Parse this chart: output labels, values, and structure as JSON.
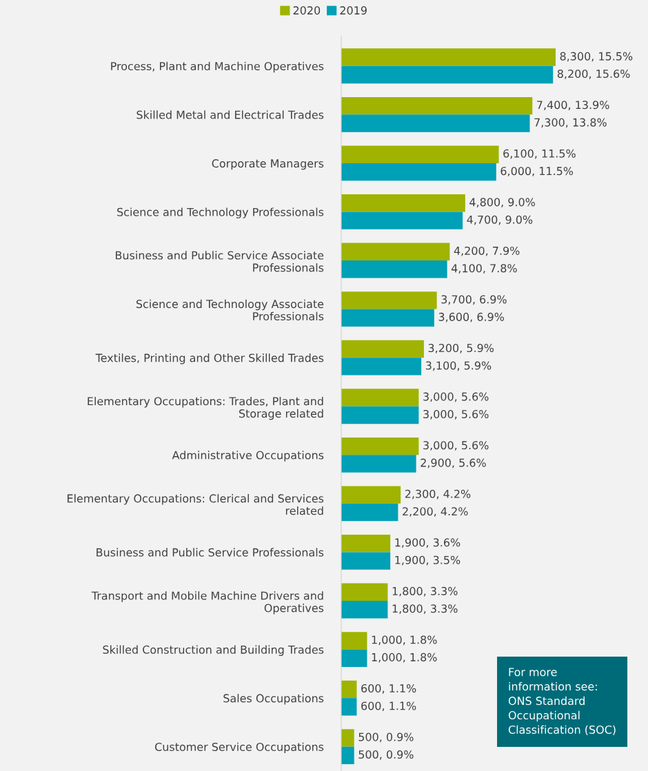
{
  "chart_data": {
    "type": "bar",
    "orientation": "horizontal",
    "legend": "top",
    "data_labels": false,
    "categories": [
      "Process, Plant and Machine Operatives",
      "Skilled Metal and Electrical Trades",
      "Corporate Managers",
      "Science and Technology Professionals",
      "Business and Public Service Associate\nProfessionals",
      "Science and Technology Associate\nProfessionals",
      "Textiles, Printing and Other Skilled Trades",
      "Elementary Occupations: Trades, Plant and\nStorage related",
      "Administrative Occupations",
      "Elementary Occupations: Clerical and Services\nrelated",
      "Business and Public Service Professionals",
      "Transport and Mobile Machine Drivers and\nOperatives",
      "Skilled Construction and Building Trades",
      "Sales Occupations",
      "Customer Service Occupations"
    ],
    "series": [
      {
        "name": "2020",
        "color": "#9fb300",
        "values": [
          8300,
          7400,
          6100,
          4800,
          4200,
          3700,
          3200,
          3000,
          3000,
          2300,
          1900,
          1800,
          1000,
          600,
          500
        ],
        "value_labels": [
          "8,300, 15.5%",
          "7,400, 13.9%",
          "6,100, 11.5%",
          "4,800, 9.0%",
          "4,200, 7.9%",
          "3,700, 6.9%",
          "3,200, 5.9%",
          "3,000, 5.6%",
          "3,000, 5.6%",
          "2,300, 4.2%",
          "1,900, 3.6%",
          "1,800, 3.3%",
          "1,000, 1.8%",
          "600, 1.1%",
          "500, 0.9%"
        ]
      },
      {
        "name": "2019",
        "color": "#00a0b6",
        "values": [
          8200,
          7300,
          6000,
          4700,
          4100,
          3600,
          3100,
          3000,
          2900,
          2200,
          1900,
          1800,
          1000,
          600,
          500
        ],
        "value_labels": [
          "8,200, 15.6%",
          "7,300, 13.8%",
          "6,000, 11.5%",
          "4,700, 9.0%",
          "4,100, 7.8%",
          "3,600, 6.9%",
          "3,100, 5.9%",
          "3,000, 5.6%",
          "2,900, 5.6%",
          "2,200, 4.2%",
          "1,900, 3.5%",
          "1,800, 3.3%",
          "1,000, 1.8%",
          "600, 1.1%",
          "500, 0.9%"
        ]
      }
    ],
    "annotations": [
      "For more\ninformation see:\nONS Standard\nOccupational\nClassification (SOC)"
    ]
  }
}
